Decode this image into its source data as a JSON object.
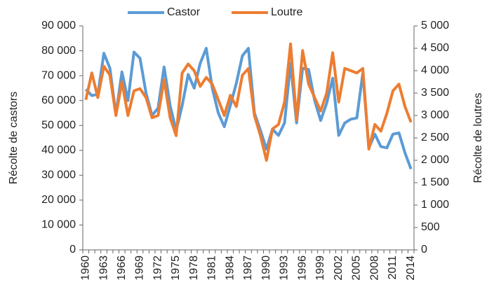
{
  "chart_data": {
    "type": "line",
    "categories": [
      "1960",
      null,
      null,
      "1963",
      null,
      null,
      "1966",
      null,
      null,
      "1969",
      null,
      null,
      "1972",
      null,
      null,
      "1975",
      null,
      null,
      "1978",
      null,
      null,
      "1981",
      null,
      null,
      "1984",
      null,
      null,
      "1987",
      null,
      null,
      "1990",
      null,
      null,
      "1993",
      null,
      null,
      "1996",
      null,
      null,
      "1999",
      null,
      null,
      "2002",
      null,
      null,
      "2005",
      null,
      null,
      "2008",
      null,
      null,
      "2011",
      null,
      null,
      "2014"
    ],
    "series": [
      {
        "name": "Castor",
        "color": "#5b9bd5",
        "values": [
          64500,
          62000,
          62500,
          79000,
          73000,
          54500,
          71500,
          60000,
          79500,
          77000,
          63000,
          54000,
          57000,
          73500,
          58000,
          48000,
          58000,
          70500,
          65000,
          75000,
          81000,
          65000,
          55000,
          49500,
          58000,
          67000,
          78000,
          81000,
          55000,
          48000,
          40500,
          48500,
          46000,
          51000,
          75000,
          51000,
          73000,
          72500,
          60000,
          52000,
          59000,
          69000,
          46000,
          51000,
          52500,
          53000,
          71000,
          41000,
          46500,
          41500,
          41000,
          46500,
          47000,
          39000,
          32500
        ]
      },
      {
        "name": "Loutre",
        "color": "#ed7d31",
        "axis": "y2",
        "values": [
          3350,
          3950,
          3400,
          4100,
          3900,
          3000,
          3750,
          3000,
          3550,
          3600,
          3400,
          2950,
          3000,
          3800,
          2950,
          2550,
          3950,
          4150,
          4000,
          3650,
          3850,
          3700,
          3350,
          3000,
          3450,
          3200,
          3900,
          4050,
          3000,
          2550,
          2000,
          2700,
          2800,
          3300,
          4600,
          2900,
          4450,
          3700,
          3400,
          3100,
          3500,
          4400,
          3300,
          4050,
          4000,
          3950,
          4050,
          2250,
          2800,
          2650,
          3050,
          3550,
          3700,
          3200,
          2850
        ]
      }
    ],
    "ylabel": "Récolte de castors",
    "y2label": "Récolte de loutres",
    "ylim": [
      0,
      90000
    ],
    "yticks": [
      0,
      {
        "value": 10000,
        "label": "10 000"
      },
      {
        "value": 20000,
        "label": "20 000"
      },
      {
        "value": 30000,
        "label": "30 000"
      },
      {
        "value": 40000,
        "label": "40 000"
      },
      {
        "value": 50000,
        "label": "50 000"
      },
      {
        "value": 60000,
        "label": "60 000"
      },
      {
        "value": 70000,
        "label": "70 000"
      },
      {
        "value": 80000,
        "label": "80 000"
      },
      {
        "value": 90000,
        "label": "90 000"
      }
    ],
    "y2lim": [
      0,
      5000
    ],
    "y2ticks": [
      0,
      500,
      {
        "value": 1000,
        "label": "1 000"
      },
      {
        "value": 1500,
        "label": "1 500"
      },
      {
        "value": 2000,
        "label": "2 000"
      },
      {
        "value": 2500,
        "label": "2 500"
      },
      {
        "value": 3000,
        "label": "3 000"
      },
      {
        "value": 3500,
        "label": "3 500"
      },
      {
        "value": 4000,
        "label": "4 000"
      },
      {
        "value": 4500,
        "label": "4 500"
      },
      {
        "value": 5000,
        "label": "5 000"
      }
    ],
    "legend": "top"
  }
}
